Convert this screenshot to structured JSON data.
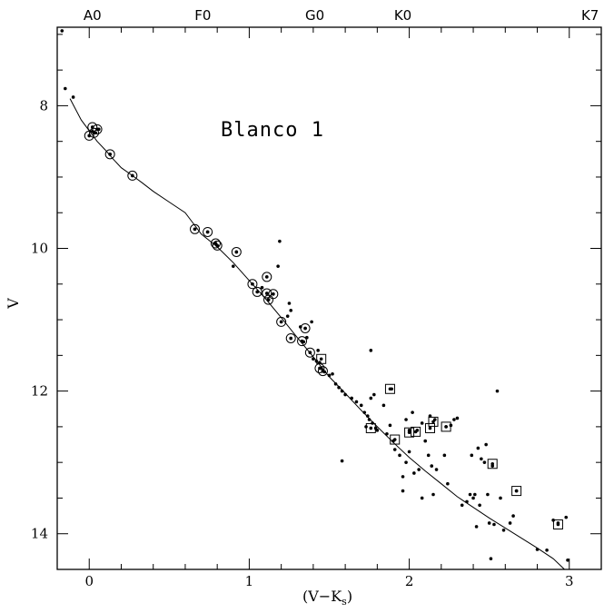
{
  "chart_data": {
    "type": "scatter",
    "title": "Blanco 1",
    "xlabel": "(V−K",
    "xlabel_sub": "s",
    "xlabel_close": ")",
    "ylabel": "V",
    "xlim": [
      -0.2,
      3.2
    ],
    "ylim": [
      14.5,
      6.9
    ],
    "y_inverted": true,
    "x_ticks": [
      0,
      1,
      2,
      3
    ],
    "x_tick_labels": [
      "0",
      "1",
      "2",
      "3"
    ],
    "y_ticks": [
      8,
      10,
      12,
      14
    ],
    "y_tick_labels": [
      "8",
      "10",
      "12",
      "14"
    ],
    "spectral_types": [
      {
        "label": "A0",
        "x": 0.02
      },
      {
        "label": "F0",
        "x": 0.71
      },
      {
        "label": "G0",
        "x": 1.41
      },
      {
        "label": "K0",
        "x": 1.96
      },
      {
        "label": "K7",
        "x": 3.13
      }
    ],
    "grid": false,
    "series": [
      {
        "marker": "dot",
        "points": [
          [
            -0.17,
            6.95
          ],
          [
            -0.15,
            7.76
          ],
          [
            -0.1,
            7.88
          ],
          [
            0.0,
            8.42
          ],
          [
            0.02,
            8.36
          ],
          [
            0.04,
            8.38
          ],
          [
            0.06,
            8.33
          ],
          [
            0.13,
            8.68
          ],
          [
            0.27,
            8.98
          ],
          [
            0.66,
            9.73
          ],
          [
            0.74,
            9.77
          ],
          [
            0.79,
            9.93
          ],
          [
            0.8,
            9.96
          ],
          [
            0.92,
            10.05
          ],
          [
            0.9,
            10.25
          ],
          [
            1.02,
            10.5
          ],
          [
            1.05,
            10.61
          ],
          [
            1.08,
            10.55
          ],
          [
            1.11,
            10.4
          ],
          [
            1.11,
            10.63
          ],
          [
            1.12,
            10.72
          ],
          [
            1.15,
            10.64
          ],
          [
            1.18,
            10.25
          ],
          [
            1.19,
            9.9
          ],
          [
            1.2,
            11.03
          ],
          [
            1.24,
            10.95
          ],
          [
            1.25,
            10.77
          ],
          [
            1.26,
            10.87
          ],
          [
            1.26,
            11.26
          ],
          [
            1.32,
            11.1
          ],
          [
            1.33,
            11.3
          ],
          [
            1.34,
            11.31
          ],
          [
            1.35,
            11.12
          ],
          [
            1.36,
            11.25
          ],
          [
            1.38,
            11.46
          ],
          [
            1.39,
            11.03
          ],
          [
            1.4,
            11.55
          ],
          [
            1.42,
            11.58
          ],
          [
            1.43,
            11.43
          ],
          [
            1.44,
            11.6
          ],
          [
            1.45,
            11.68
          ],
          [
            1.46,
            11.72
          ],
          [
            1.47,
            11.73
          ],
          [
            1.5,
            11.78
          ],
          [
            1.52,
            11.76
          ],
          [
            1.54,
            11.9
          ],
          [
            1.56,
            11.95
          ],
          [
            1.58,
            12.0
          ],
          [
            1.58,
            12.98
          ],
          [
            1.6,
            12.05
          ],
          [
            1.64,
            12.1
          ],
          [
            1.67,
            12.15
          ],
          [
            1.7,
            12.2
          ],
          [
            1.72,
            12.3
          ],
          [
            1.73,
            12.5
          ],
          [
            1.74,
            12.35
          ],
          [
            1.75,
            12.4
          ],
          [
            1.76,
            11.43
          ],
          [
            1.76,
            12.1
          ],
          [
            1.77,
            12.45
          ],
          [
            1.78,
            12.05
          ],
          [
            1.79,
            12.52
          ],
          [
            1.8,
            12.55
          ],
          [
            1.84,
            12.2
          ],
          [
            1.86,
            12.6
          ],
          [
            1.88,
            12.48
          ],
          [
            1.89,
            11.97
          ],
          [
            1.9,
            12.7
          ],
          [
            1.91,
            12.82
          ],
          [
            1.94,
            12.9
          ],
          [
            1.96,
            13.2
          ],
          [
            1.96,
            13.4
          ],
          [
            1.98,
            12.4
          ],
          [
            1.98,
            13.0
          ],
          [
            2.0,
            12.55
          ],
          [
            2.0,
            12.85
          ],
          [
            2.02,
            12.3
          ],
          [
            2.03,
            13.15
          ],
          [
            2.05,
            12.55
          ],
          [
            2.06,
            13.1
          ],
          [
            2.08,
            13.5
          ],
          [
            2.08,
            12.45
          ],
          [
            2.1,
            12.7
          ],
          [
            2.12,
            12.9
          ],
          [
            2.13,
            12.35
          ],
          [
            2.14,
            13.05
          ],
          [
            2.15,
            13.45
          ],
          [
            2.16,
            12.4
          ],
          [
            2.17,
            13.1
          ],
          [
            2.22,
            12.9
          ],
          [
            2.23,
            12.5
          ],
          [
            2.24,
            13.3
          ],
          [
            2.26,
            12.48
          ],
          [
            2.28,
            12.4
          ],
          [
            2.3,
            12.38
          ],
          [
            2.33,
            13.6
          ],
          [
            2.36,
            13.55
          ],
          [
            2.38,
            13.45
          ],
          [
            2.39,
            12.9
          ],
          [
            2.4,
            13.5
          ],
          [
            2.41,
            13.45
          ],
          [
            2.42,
            13.9
          ],
          [
            2.43,
            12.8
          ],
          [
            2.44,
            13.6
          ],
          [
            2.45,
            12.95
          ],
          [
            2.47,
            13.0
          ],
          [
            2.48,
            12.75
          ],
          [
            2.49,
            13.45
          ],
          [
            2.5,
            13.85
          ],
          [
            2.51,
            14.35
          ],
          [
            2.52,
            13.05
          ],
          [
            2.53,
            13.87
          ],
          [
            2.55,
            12.0
          ],
          [
            2.57,
            13.5
          ],
          [
            2.59,
            13.95
          ],
          [
            2.63,
            13.85
          ],
          [
            2.65,
            13.75
          ],
          [
            2.67,
            13.4
          ],
          [
            2.8,
            14.22
          ],
          [
            2.86,
            14.23
          ],
          [
            2.9,
            13.81
          ],
          [
            2.93,
            13.85
          ],
          [
            2.98,
            13.77
          ],
          [
            2.99,
            14.37
          ]
        ]
      },
      {
        "marker": "circle",
        "points": [
          [
            0.0,
            8.42
          ],
          [
            0.02,
            8.3
          ],
          [
            0.03,
            8.38
          ],
          [
            0.05,
            8.33
          ],
          [
            0.13,
            8.68
          ],
          [
            0.27,
            8.98
          ],
          [
            0.66,
            9.73
          ],
          [
            0.74,
            9.77
          ],
          [
            0.79,
            9.93
          ],
          [
            0.8,
            9.96
          ],
          [
            0.92,
            10.05
          ],
          [
            1.02,
            10.5
          ],
          [
            1.05,
            10.61
          ],
          [
            1.11,
            10.4
          ],
          [
            1.11,
            10.63
          ],
          [
            1.12,
            10.72
          ],
          [
            1.15,
            10.64
          ],
          [
            1.2,
            11.03
          ],
          [
            1.26,
            11.26
          ],
          [
            1.33,
            11.3
          ],
          [
            1.35,
            11.12
          ],
          [
            1.38,
            11.46
          ],
          [
            1.44,
            11.68
          ],
          [
            1.46,
            11.72
          ]
        ]
      },
      {
        "marker": "square",
        "points": [
          [
            1.45,
            11.55
          ],
          [
            1.76,
            12.52
          ],
          [
            1.88,
            11.97
          ],
          [
            1.91,
            12.68
          ],
          [
            2.0,
            12.58
          ],
          [
            2.04,
            12.57
          ],
          [
            2.13,
            12.52
          ],
          [
            2.15,
            12.43
          ],
          [
            2.23,
            12.5
          ],
          [
            2.52,
            13.02
          ],
          [
            2.67,
            13.4
          ],
          [
            2.93,
            13.87
          ]
        ]
      }
    ],
    "isochrone": [
      [
        -0.12,
        7.9
      ],
      [
        -0.05,
        8.2
      ],
      [
        0.0,
        8.35
      ],
      [
        0.05,
        8.5
      ],
      [
        0.1,
        8.62
      ],
      [
        0.15,
        8.75
      ],
      [
        0.2,
        8.87
      ],
      [
        0.27,
        8.98
      ],
      [
        0.33,
        9.08
      ],
      [
        0.4,
        9.2
      ],
      [
        0.5,
        9.35
      ],
      [
        0.6,
        9.5
      ],
      [
        0.65,
        9.65
      ],
      [
        0.7,
        9.8
      ],
      [
        0.8,
        9.98
      ],
      [
        0.9,
        10.2
      ],
      [
        1.0,
        10.45
      ],
      [
        1.1,
        10.7
      ],
      [
        1.2,
        10.97
      ],
      [
        1.3,
        11.25
      ],
      [
        1.4,
        11.52
      ],
      [
        1.5,
        11.8
      ],
      [
        1.6,
        12.03
      ],
      [
        1.7,
        12.27
      ],
      [
        1.8,
        12.5
      ],
      [
        1.9,
        12.72
      ],
      [
        2.0,
        12.93
      ],
      [
        2.1,
        13.12
      ],
      [
        2.2,
        13.3
      ],
      [
        2.3,
        13.48
      ],
      [
        2.4,
        13.63
      ],
      [
        2.5,
        13.78
      ],
      [
        2.6,
        13.92
      ],
      [
        2.7,
        14.06
      ],
      [
        2.8,
        14.2
      ],
      [
        2.9,
        14.35
      ],
      [
        2.97,
        14.5
      ]
    ]
  }
}
